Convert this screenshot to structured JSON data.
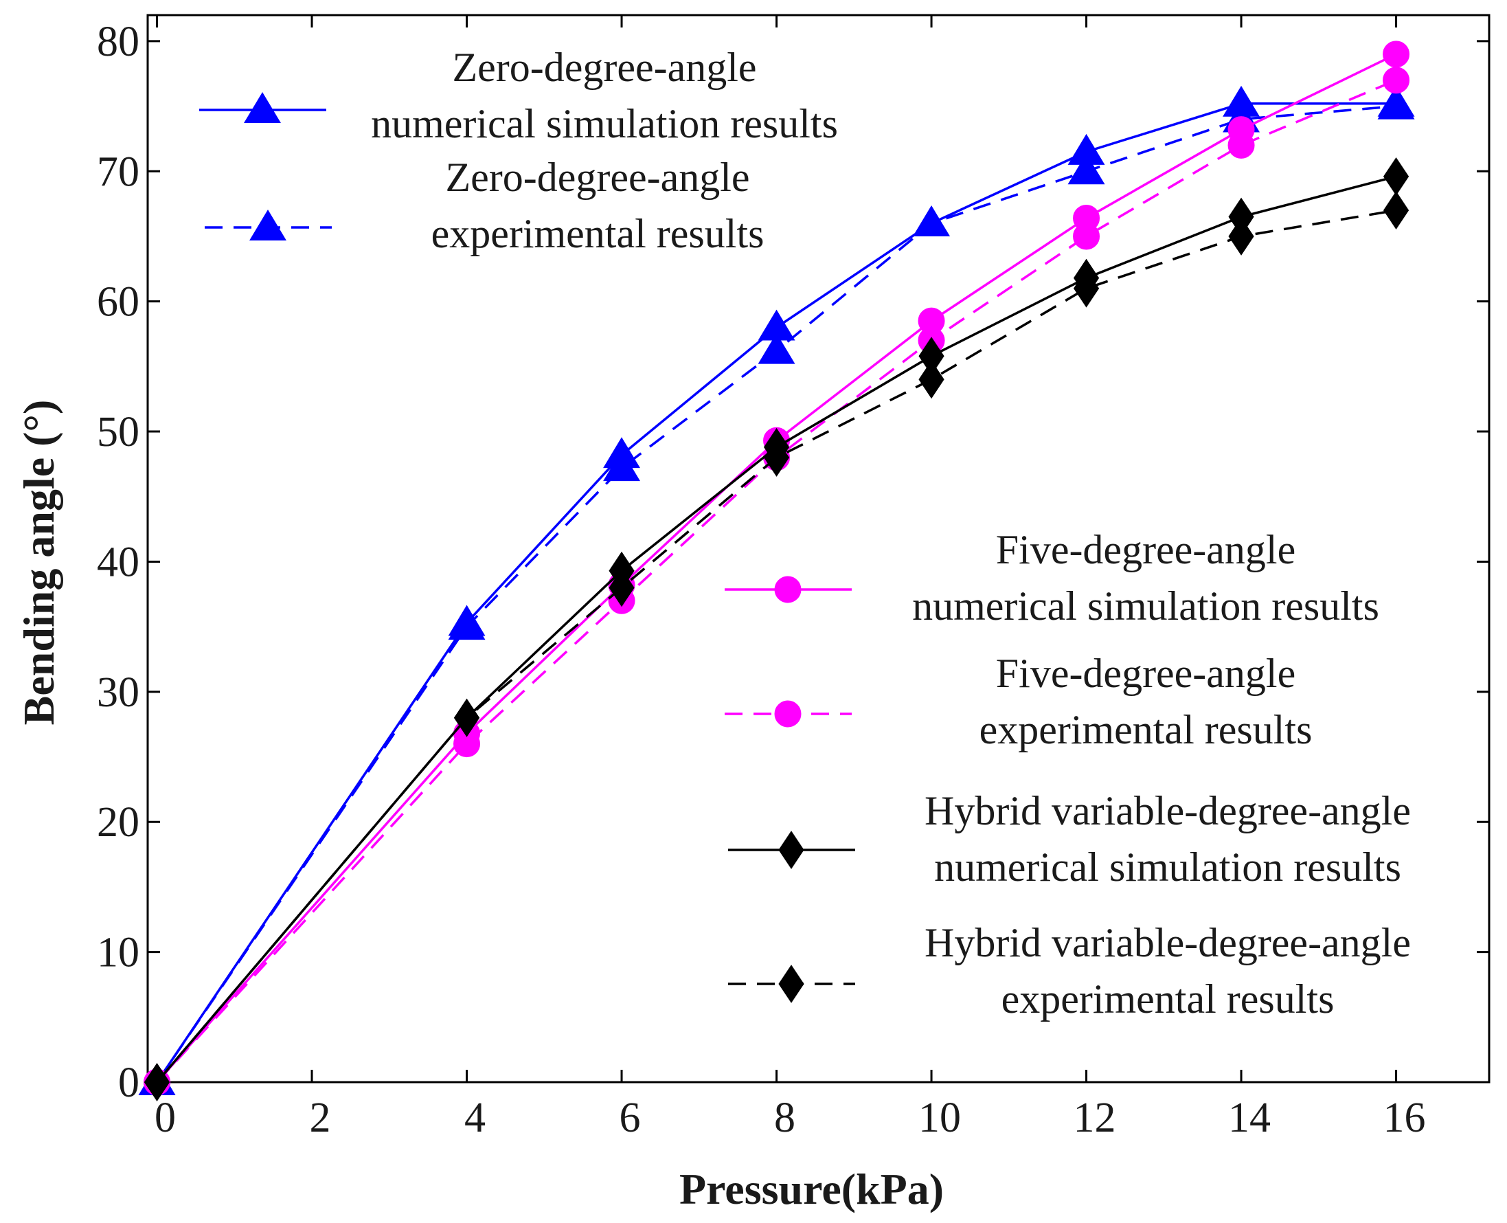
{
  "chart_data": {
    "type": "line",
    "title": "",
    "xlabel": "Pressure(kPa)",
    "ylabel": "Bending angle (°)",
    "xlim": [
      0,
      17.2
    ],
    "ylim": [
      0,
      82
    ],
    "xticks": [
      0,
      2,
      4,
      6,
      8,
      10,
      12,
      14,
      16
    ],
    "yticks": [
      0,
      10,
      20,
      30,
      40,
      50,
      60,
      70,
      80
    ],
    "x": [
      0,
      4,
      6,
      8,
      10,
      12,
      14,
      16
    ],
    "series": [
      {
        "id": "zero-sim",
        "name_lines": [
          "Zero-degree-angle",
          "numerical simulation results"
        ],
        "color": "#0000ff",
        "dash": "solid",
        "marker": "triangle",
        "values": [
          0,
          35.3,
          48.2,
          58.0,
          66.0,
          71.5,
          75.2,
          75.2
        ]
      },
      {
        "id": "zero-exp",
        "name_lines": [
          "Zero-degree-angle",
          "experimental results"
        ],
        "color": "#0000ff",
        "dash": "dashed",
        "marker": "triangle",
        "values": [
          0,
          35.0,
          47.2,
          56.2,
          66.0,
          70.0,
          74.0,
          75.0
        ]
      },
      {
        "id": "five-sim",
        "name_lines": [
          "Five-degree-angle",
          "numerical simulation results"
        ],
        "color": "#ff00ff",
        "dash": "solid",
        "marker": "circle",
        "values": [
          0,
          26.8,
          38.2,
          49.3,
          58.5,
          66.4,
          73.2,
          79.0
        ]
      },
      {
        "id": "five-exp",
        "name_lines": [
          "Five-degree-angle",
          "experimental results"
        ],
        "color": "#ff00ff",
        "dash": "dashed",
        "marker": "circle",
        "values": [
          0,
          26.0,
          37.0,
          48.0,
          57.0,
          65.0,
          72.0,
          77.0
        ]
      },
      {
        "id": "hybrid-sim",
        "name_lines": [
          "Hybrid variable-degree-angle",
          "numerical simulation results"
        ],
        "color": "#000000",
        "dash": "solid",
        "marker": "diamond",
        "values": [
          0,
          28.0,
          39.3,
          48.8,
          55.8,
          61.8,
          66.5,
          69.6
        ]
      },
      {
        "id": "hybrid-exp",
        "name_lines": [
          "Hybrid variable-degree-angle",
          "experimental results"
        ],
        "color": "#000000",
        "dash": "dashed",
        "marker": "diamond",
        "values": [
          0,
          28.0,
          38.0,
          48.0,
          54.0,
          61.0,
          65.0,
          67.0
        ]
      }
    ],
    "legend_groups": [
      {
        "placement": "top-left",
        "series": [
          "zero-sim",
          "zero-exp"
        ]
      },
      {
        "placement": "lower-right",
        "series": [
          "five-sim",
          "five-exp",
          "hybrid-sim",
          "hybrid-exp"
        ]
      }
    ]
  }
}
